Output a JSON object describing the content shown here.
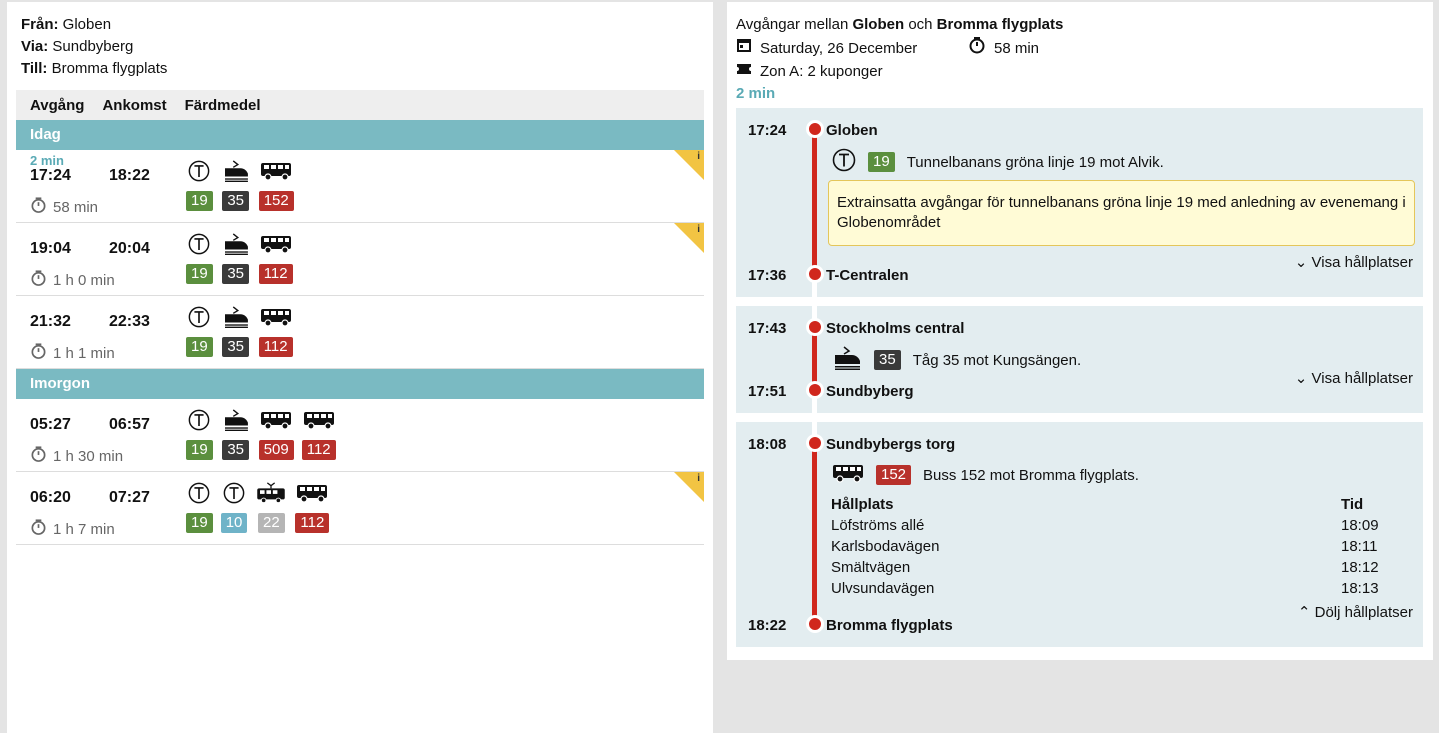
{
  "summary": {
    "from_label": "Från:",
    "from": "Globen",
    "via_label": "Via:",
    "via": "Sundbyberg",
    "to_label": "Till:",
    "to": "Bromma flygplats"
  },
  "columns": [
    "Avgång",
    "Ankomst",
    "Färdmedel"
  ],
  "colors": {
    "band": "#7abac2",
    "accent": "#5aaab5",
    "route_red": "#d0271d",
    "leg_bg": "#e3edf0",
    "alert_bg": "#fffbd6"
  },
  "groups": [
    {
      "label": "Idag",
      "trips": [
        {
          "soon": "2 min",
          "dep": "17:24",
          "arr": "18:22",
          "dur": "58 min",
          "info": true,
          "legs": [
            {
              "mode": "metro-icon",
              "line": "19",
              "color": "#5b8f3e"
            },
            {
              "mode": "train-icon",
              "line": "35",
              "color": "#3a3a3a"
            },
            {
              "mode": "bus-icon",
              "line": "152",
              "color": "#b8312b"
            }
          ]
        },
        {
          "dep": "19:04",
          "arr": "20:04",
          "dur": "1 h 0 min",
          "info": true,
          "legs": [
            {
              "mode": "metro-icon",
              "line": "19",
              "color": "#5b8f3e"
            },
            {
              "mode": "train-icon",
              "line": "35",
              "color": "#3a3a3a"
            },
            {
              "mode": "bus-icon",
              "line": "112",
              "color": "#b8312b"
            }
          ]
        },
        {
          "dep": "21:32",
          "arr": "22:33",
          "dur": "1 h 1 min",
          "info": false,
          "legs": [
            {
              "mode": "metro-icon",
              "line": "19",
              "color": "#5b8f3e"
            },
            {
              "mode": "train-icon",
              "line": "35",
              "color": "#3a3a3a"
            },
            {
              "mode": "bus-icon",
              "line": "112",
              "color": "#b8312b"
            }
          ]
        }
      ]
    },
    {
      "label": "Imorgon",
      "trips": [
        {
          "dep": "05:27",
          "arr": "06:57",
          "dur": "1 h 30 min",
          "info": false,
          "legs": [
            {
              "mode": "metro-icon",
              "line": "19",
              "color": "#5b8f3e"
            },
            {
              "mode": "train-icon",
              "line": "35",
              "color": "#3a3a3a"
            },
            {
              "mode": "bus-icon",
              "line": "509",
              "color": "#b8312b"
            },
            {
              "mode": "bus-icon",
              "line": "112",
              "color": "#b8312b"
            }
          ]
        },
        {
          "dep": "06:20",
          "arr": "07:27",
          "dur": "1 h 7 min",
          "info": true,
          "legs": [
            {
              "mode": "metro-icon",
              "line": "19",
              "color": "#5b8f3e"
            },
            {
              "mode": "metro-icon",
              "line": "10",
              "color": "#6fb3c8"
            },
            {
              "mode": "tram-icon",
              "line": "22",
              "color": "#b5b5b5"
            },
            {
              "mode": "bus-icon",
              "line": "112",
              "color": "#b8312b"
            }
          ]
        }
      ]
    }
  ],
  "detail": {
    "title_pre": "Avgångar mellan",
    "title_from": "Globen",
    "title_mid": "och",
    "title_to": "Bromma flygplats",
    "date": "Saturday, 26 December",
    "duration": "58 min",
    "zone": "Zon A: 2 kuponger",
    "wait": "2 min",
    "legs": [
      {
        "dep_time": "17:24",
        "dep_stop": "Globen",
        "line": "19",
        "color": "#5b8f3e",
        "desc": "Tunnelbanans gröna linje 19 mot Alvik.",
        "alert": "Extrainsatta avgångar för tunnelbanans gröna linje 19 med anledning av evenemang i Globenområdet",
        "toggle": "Visa hållplatser",
        "arr_time": "17:36",
        "arr_stop": "T-Centralen"
      },
      {
        "dep_time": "17:43",
        "dep_stop": "Stockholms central",
        "line": "35",
        "color": "#3a3a3a",
        "desc": "Tåg 35 mot Kungsängen.",
        "toggle": "Visa hållplatser",
        "arr_time": "17:51",
        "arr_stop": "Sundbyberg"
      },
      {
        "dep_time": "18:08",
        "dep_stop": "Sundbybergs torg",
        "line": "152",
        "color": "#b8312b",
        "desc": "Buss 152 mot Bromma flygplats.",
        "stops_header": [
          "Hållplats",
          "Tid"
        ],
        "stops": [
          [
            "Löfströms allé",
            "18:09"
          ],
          [
            "Karlsbodavägen",
            "18:11"
          ],
          [
            "Smältvägen",
            "18:12"
          ],
          [
            "Ulvsundavägen",
            "18:13"
          ]
        ],
        "toggle": "Dölj hållplatser",
        "arr_time": "18:22",
        "arr_stop": "Bromma flygplats"
      }
    ]
  }
}
